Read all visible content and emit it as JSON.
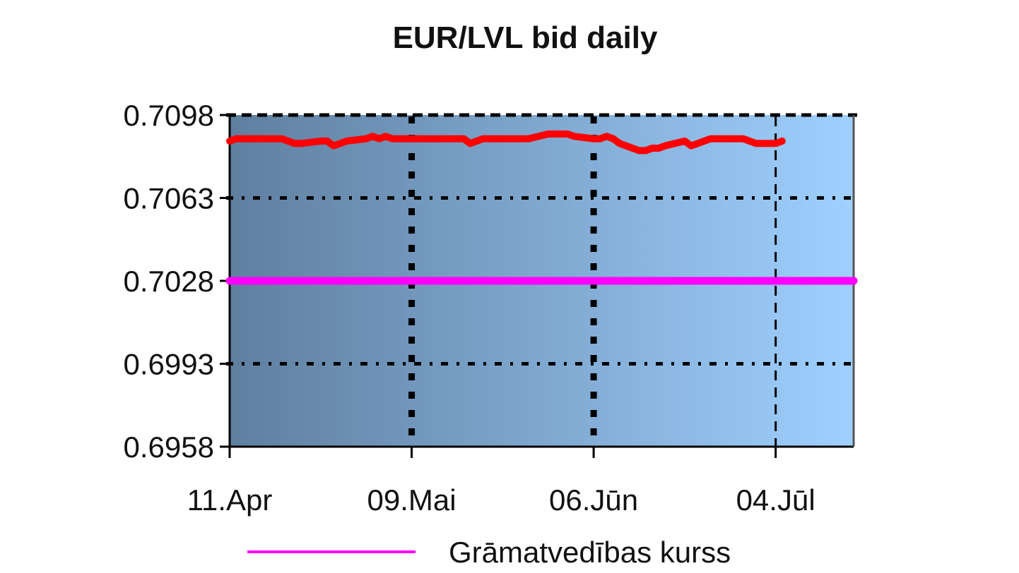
{
  "chart_data": {
    "type": "line",
    "title": "EUR/LVL bid daily",
    "xlabel": "",
    "ylabel": "",
    "ylim": [
      0.6958,
      0.7098
    ],
    "yticks": [
      "0.7098",
      "0.7063",
      "0.7028",
      "0.6993",
      "0.6958"
    ],
    "xticks": [
      {
        "label": "11.Apr",
        "date": "2011-04-11"
      },
      {
        "label": "09.Mai",
        "date": "2011-05-09"
      },
      {
        "label": "06.Jūn",
        "date": "2011-06-06"
      },
      {
        "label": "04.Jūl",
        "date": "2011-07-04"
      }
    ],
    "xrange": [
      "2011-04-11",
      "2011-07-16"
    ],
    "grid": true,
    "background": {
      "from": "#5f7f9f",
      "to": "#9fd0ff"
    },
    "series": [
      {
        "color": "#ff0000",
        "points": [
          [
            "2011-04-11",
            0.7087
          ],
          [
            "2011-04-12",
            0.7088
          ],
          [
            "2011-04-13",
            0.7088
          ],
          [
            "2011-04-14",
            0.7088
          ],
          [
            "2011-04-15",
            0.7088
          ],
          [
            "2011-04-18",
            0.7088
          ],
          [
            "2011-04-19",
            0.7088
          ],
          [
            "2011-04-20",
            0.7087
          ],
          [
            "2011-04-21",
            0.7086
          ],
          [
            "2011-04-22",
            0.7086
          ],
          [
            "2011-04-25",
            0.7087
          ],
          [
            "2011-04-26",
            0.7087
          ],
          [
            "2011-04-27",
            0.7085
          ],
          [
            "2011-04-28",
            0.7086
          ],
          [
            "2011-04-29",
            0.7087
          ],
          [
            "2011-05-02",
            0.7088
          ],
          [
            "2011-05-03",
            0.7089
          ],
          [
            "2011-05-04",
            0.7088
          ],
          [
            "2011-05-05",
            0.7089
          ],
          [
            "2011-05-06",
            0.7088
          ],
          [
            "2011-05-09",
            0.7088
          ],
          [
            "2011-05-10",
            0.7088
          ],
          [
            "2011-05-11",
            0.7088
          ],
          [
            "2011-05-12",
            0.7088
          ],
          [
            "2011-05-13",
            0.7088
          ],
          [
            "2011-05-16",
            0.7088
          ],
          [
            "2011-05-17",
            0.7088
          ],
          [
            "2011-05-18",
            0.7086
          ],
          [
            "2011-05-19",
            0.7087
          ],
          [
            "2011-05-20",
            0.7088
          ],
          [
            "2011-05-23",
            0.7088
          ],
          [
            "2011-05-24",
            0.7088
          ],
          [
            "2011-05-25",
            0.7088
          ],
          [
            "2011-05-26",
            0.7088
          ],
          [
            "2011-05-27",
            0.7088
          ],
          [
            "2011-05-30",
            0.709
          ],
          [
            "2011-05-31",
            0.709
          ],
          [
            "2011-06-01",
            0.709
          ],
          [
            "2011-06-02",
            0.709
          ],
          [
            "2011-06-03",
            0.7089
          ],
          [
            "2011-06-06",
            0.7088
          ],
          [
            "2011-06-07",
            0.7088
          ],
          [
            "2011-06-08",
            0.7089
          ],
          [
            "2011-06-09",
            0.7088
          ],
          [
            "2011-06-10",
            0.7086
          ],
          [
            "2011-06-13",
            0.7083
          ],
          [
            "2011-06-14",
            0.7083
          ],
          [
            "2011-06-15",
            0.7084
          ],
          [
            "2011-06-16",
            0.7084
          ],
          [
            "2011-06-17",
            0.7085
          ],
          [
            "2011-06-20",
            0.7087
          ],
          [
            "2011-06-21",
            0.7085
          ],
          [
            "2011-06-22",
            0.7086
          ],
          [
            "2011-06-23",
            0.7087
          ],
          [
            "2011-06-24",
            0.7088
          ],
          [
            "2011-06-27",
            0.7088
          ],
          [
            "2011-06-28",
            0.7088
          ],
          [
            "2011-06-29",
            0.7088
          ],
          [
            "2011-06-30",
            0.7087
          ],
          [
            "2011-07-01",
            0.7086
          ],
          [
            "2011-07-04",
            0.7086
          ],
          [
            "2011-07-05",
            0.7087
          ]
        ]
      },
      {
        "name": "Grāmatvedības kurss",
        "color": "#ff00ff",
        "points": [
          [
            "2011-04-11",
            0.7028
          ],
          [
            "2011-07-16",
            0.7028
          ]
        ]
      }
    ],
    "legend": {
      "position": "bottom",
      "label": "Grāmatvedības kurss",
      "color": "#ff00ff"
    }
  }
}
